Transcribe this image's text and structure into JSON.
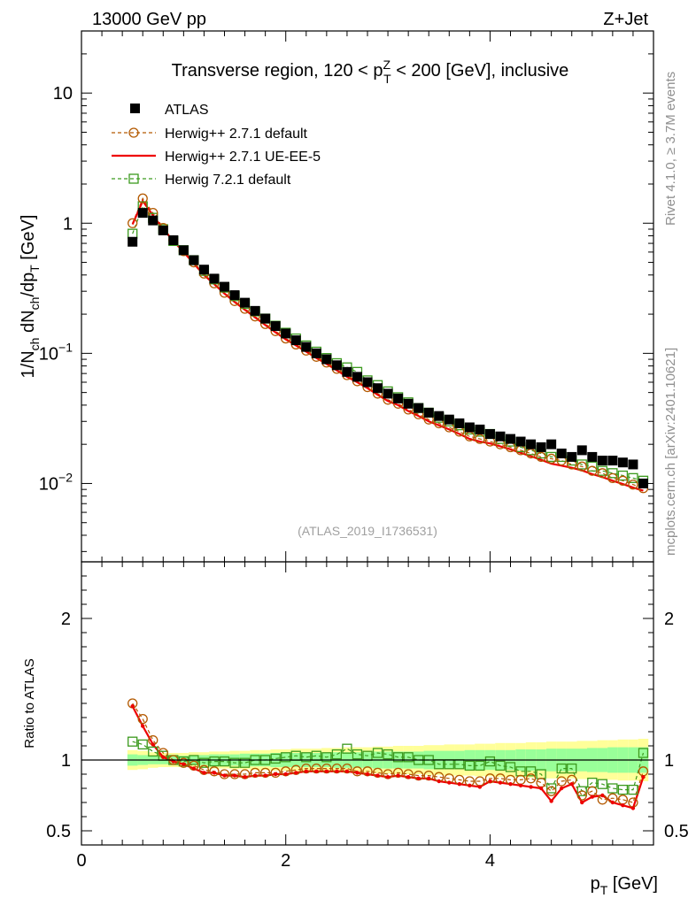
{
  "header": {
    "left": "13000 GeV pp",
    "right": "Z+Jet"
  },
  "side": {
    "rivet": "Rivet 4.1.0, ≥ 3.7M events",
    "mcplots": "mcplots.cern.ch [arXiv:2401.10621]"
  },
  "watermark": "(ATLAS_2019_I1736531)",
  "title": {
    "pre": "Transverse region, 120 < p",
    "sub": "T",
    "sup": "Z",
    "post": " < 200 [GeV], inclusive"
  },
  "colors": {
    "atlas": "#000000",
    "herwig_default": "#b35900",
    "herwig_ueee5": "#ee0000",
    "herwig721": "#3c9a1e",
    "band_inner": "#99ff99",
    "band_outer": "#ffff99"
  },
  "chart_data": [
    {
      "type": "scatter",
      "panel": "main",
      "ylabel": "1/N_ch dN_ch/dp_T [GeV]",
      "ylabel_parts": {
        "a": "1/N",
        "a_sub": "ch",
        "b": " dN",
        "b_sub": "ch",
        "c": "/dp",
        "c_sub": "T",
        "d": " [GeV]"
      },
      "yscale": "log",
      "ylim": [
        0.0025,
        30
      ],
      "xlim": [
        0,
        5.6
      ],
      "yticks": [
        {
          "v": 10,
          "label": "10"
        },
        {
          "v": 1,
          "label": "1"
        },
        {
          "v": 0.1,
          "label": "10",
          "exp": "−1"
        },
        {
          "v": 0.01,
          "label": "10",
          "exp": "−2"
        }
      ],
      "legend": [
        {
          "name": "ATLAS",
          "style": "data"
        },
        {
          "name": "Herwig++ 2.7.1 default",
          "style": "circle-dashed"
        },
        {
          "name": "Herwig++ 2.7.1 UE-EE-5",
          "style": "line"
        },
        {
          "name": "Herwig 7.2.1 default",
          "style": "square-dashed"
        }
      ],
      "x": [
        0.5,
        0.6,
        0.7,
        0.8,
        0.9,
        1.0,
        1.1,
        1.2,
        1.3,
        1.4,
        1.5,
        1.6,
        1.7,
        1.8,
        1.9,
        2.0,
        2.1,
        2.2,
        2.3,
        2.4,
        2.5,
        2.6,
        2.7,
        2.8,
        2.9,
        3.0,
        3.1,
        3.2,
        3.3,
        3.4,
        3.5,
        3.6,
        3.7,
        3.8,
        3.9,
        4.0,
        4.1,
        4.2,
        4.3,
        4.4,
        4.5,
        4.6,
        4.7,
        4.8,
        4.9,
        5.0,
        5.1,
        5.2,
        5.3,
        5.4,
        5.5
      ],
      "series": [
        {
          "name": "ATLAS",
          "values": [
            0.72,
            1.2,
            1.05,
            0.88,
            0.74,
            0.62,
            0.52,
            0.44,
            0.375,
            0.325,
            0.28,
            0.245,
            0.212,
            0.185,
            0.162,
            0.142,
            0.126,
            0.112,
            0.1,
            0.09,
            0.081,
            0.072,
            0.066,
            0.06,
            0.054,
            0.049,
            0.045,
            0.041,
            0.038,
            0.035,
            0.033,
            0.031,
            0.029,
            0.027,
            0.026,
            0.024,
            0.023,
            0.022,
            0.021,
            0.02,
            0.019,
            0.02,
            0.017,
            0.016,
            0.018,
            0.016,
            0.015,
            0.015,
            0.0145,
            0.014,
            0.01
          ]
        },
        {
          "name": "Herwig++ 2.7.1 default",
          "values": [
            1.0,
            1.55,
            1.2,
            0.92,
            0.74,
            0.61,
            0.5,
            0.41,
            0.345,
            0.292,
            0.252,
            0.22,
            0.192,
            0.168,
            0.148,
            0.13,
            0.117,
            0.105,
            0.094,
            0.085,
            0.076,
            0.068,
            0.061,
            0.055,
            0.049,
            0.044,
            0.041,
            0.037,
            0.034,
            0.031,
            0.029,
            0.027,
            0.025,
            0.023,
            0.022,
            0.021,
            0.02,
            0.019,
            0.018,
            0.017,
            0.016,
            0.0155,
            0.015,
            0.014,
            0.0135,
            0.0125,
            0.012,
            0.011,
            0.0105,
            0.0098,
            0.0092
          ]
        },
        {
          "name": "Herwig++ 2.7.1 UE-EE-5",
          "values": [
            0.98,
            1.48,
            1.15,
            0.9,
            0.73,
            0.6,
            0.49,
            0.4,
            0.34,
            0.288,
            0.248,
            0.216,
            0.189,
            0.165,
            0.145,
            0.128,
            0.115,
            0.103,
            0.092,
            0.083,
            0.074,
            0.066,
            0.06,
            0.054,
            0.048,
            0.043,
            0.04,
            0.036,
            0.033,
            0.03,
            0.028,
            0.026,
            0.024,
            0.022,
            0.021,
            0.0203,
            0.0193,
            0.0183,
            0.0172,
            0.0162,
            0.0152,
            0.0142,
            0.0137,
            0.0132,
            0.0126,
            0.0118,
            0.0112,
            0.0105,
            0.0099,
            0.0093,
            0.0088
          ]
        },
        {
          "name": "Herwig 7.2.1 default",
          "values": [
            0.83,
            1.35,
            1.1,
            0.9,
            0.73,
            0.62,
            0.52,
            0.43,
            0.37,
            0.32,
            0.275,
            0.24,
            0.21,
            0.185,
            0.163,
            0.144,
            0.13,
            0.115,
            0.103,
            0.092,
            0.084,
            0.078,
            0.072,
            0.062,
            0.057,
            0.051,
            0.046,
            0.042,
            0.038,
            0.035,
            0.032,
            0.03,
            0.028,
            0.026,
            0.025,
            0.024,
            0.022,
            0.021,
            0.019,
            0.018,
            0.017,
            0.016,
            0.016,
            0.015,
            0.014,
            0.0135,
            0.0125,
            0.012,
            0.0115,
            0.011,
            0.0105
          ]
        }
      ]
    },
    {
      "type": "line",
      "panel": "ratio",
      "ylabel": "Ratio to ATLAS",
      "xlabel": "p_T [GeV]",
      "xlabel_parts": {
        "main": "p",
        "sub": "T",
        "unit": " [GeV]"
      },
      "ylim": [
        0.4,
        2.4
      ],
      "xlim": [
        0,
        5.6
      ],
      "yticks": [
        {
          "v": 2,
          "label": "2"
        },
        {
          "v": 1,
          "label": "1"
        },
        {
          "v": 0.5,
          "label": "0.5"
        }
      ],
      "xticks": [
        {
          "v": 0,
          "label": "0"
        },
        {
          "v": 2,
          "label": "2"
        },
        {
          "v": 4,
          "label": "4"
        }
      ],
      "x": [
        0.5,
        0.6,
        0.7,
        0.8,
        0.9,
        1.0,
        1.1,
        1.2,
        1.3,
        1.4,
        1.5,
        1.6,
        1.7,
        1.8,
        1.9,
        2.0,
        2.1,
        2.2,
        2.3,
        2.4,
        2.5,
        2.6,
        2.7,
        2.8,
        2.9,
        3.0,
        3.1,
        3.2,
        3.3,
        3.4,
        3.5,
        3.6,
        3.7,
        3.8,
        3.9,
        4.0,
        4.1,
        4.2,
        4.3,
        4.4,
        4.5,
        4.6,
        4.7,
        4.8,
        4.9,
        5.0,
        5.1,
        5.2,
        5.3,
        5.4,
        5.5
      ],
      "band_inner": [
        0.04,
        0.035,
        0.03,
        0.03,
        0.03,
        0.03,
        0.035,
        0.035,
        0.04,
        0.04,
        0.04,
        0.045,
        0.045,
        0.045,
        0.05,
        0.05,
        0.05,
        0.05,
        0.05,
        0.05,
        0.055,
        0.055,
        0.055,
        0.055,
        0.06,
        0.06,
        0.06,
        0.06,
        0.06,
        0.065,
        0.065,
        0.065,
        0.065,
        0.07,
        0.07,
        0.07,
        0.07,
        0.07,
        0.075,
        0.075,
        0.075,
        0.08,
        0.08,
        0.08,
        0.08,
        0.085,
        0.085,
        0.09,
        0.09,
        0.09,
        0.09
      ],
      "band_outer": [
        0.07,
        0.065,
        0.055,
        0.05,
        0.05,
        0.05,
        0.055,
        0.055,
        0.06,
        0.06,
        0.065,
        0.065,
        0.07,
        0.07,
        0.075,
        0.075,
        0.08,
        0.08,
        0.08,
        0.085,
        0.085,
        0.09,
        0.09,
        0.09,
        0.095,
        0.095,
        0.1,
        0.1,
        0.1,
        0.105,
        0.105,
        0.11,
        0.11,
        0.11,
        0.115,
        0.115,
        0.12,
        0.12,
        0.12,
        0.125,
        0.125,
        0.13,
        0.13,
        0.13,
        0.135,
        0.135,
        0.14,
        0.14,
        0.145,
        0.145,
        0.15
      ],
      "series": [
        {
          "name": "Herwig++ 2.7.1 default",
          "values": [
            1.4,
            1.29,
            1.14,
            1.05,
            1.0,
            0.98,
            0.96,
            0.93,
            0.92,
            0.9,
            0.9,
            0.9,
            0.91,
            0.91,
            0.91,
            0.92,
            0.93,
            0.94,
            0.94,
            0.94,
            0.94,
            0.94,
            0.92,
            0.92,
            0.91,
            0.9,
            0.91,
            0.9,
            0.89,
            0.89,
            0.88,
            0.87,
            0.86,
            0.85,
            0.85,
            0.87,
            0.87,
            0.86,
            0.86,
            0.87,
            0.84,
            0.78,
            0.85,
            0.86,
            0.75,
            0.78,
            0.72,
            0.73,
            0.72,
            0.7,
            0.92
          ]
        },
        {
          "name": "Herwig++ 2.7.1 UE-EE-5",
          "values": [
            1.38,
            1.24,
            1.11,
            1.02,
            0.99,
            0.97,
            0.94,
            0.91,
            0.91,
            0.89,
            0.89,
            0.88,
            0.89,
            0.89,
            0.9,
            0.9,
            0.91,
            0.92,
            0.92,
            0.92,
            0.92,
            0.92,
            0.91,
            0.9,
            0.89,
            0.88,
            0.89,
            0.88,
            0.87,
            0.87,
            0.85,
            0.84,
            0.83,
            0.82,
            0.81,
            0.85,
            0.84,
            0.83,
            0.82,
            0.81,
            0.8,
            0.71,
            0.8,
            0.83,
            0.7,
            0.74,
            0.75,
            0.7,
            0.68,
            0.66,
            0.88
          ]
        },
        {
          "name": "Herwig 7.2.1 default",
          "values": [
            1.13,
            1.11,
            1.06,
            1.03,
            1.0,
            0.99,
            1.0,
            0.98,
            0.99,
            0.99,
            0.98,
            0.98,
            1.0,
            1.0,
            1.01,
            1.02,
            1.03,
            1.02,
            1.03,
            1.02,
            1.04,
            1.08,
            1.04,
            1.03,
            1.05,
            1.04,
            1.02,
            1.02,
            1.0,
            1.0,
            0.97,
            0.97,
            0.97,
            0.96,
            0.96,
            0.99,
            0.96,
            0.95,
            0.92,
            0.92,
            0.9,
            0.8,
            0.94,
            0.94,
            0.78,
            0.84,
            0.83,
            0.8,
            0.79,
            0.79,
            1.05
          ]
        }
      ]
    }
  ]
}
